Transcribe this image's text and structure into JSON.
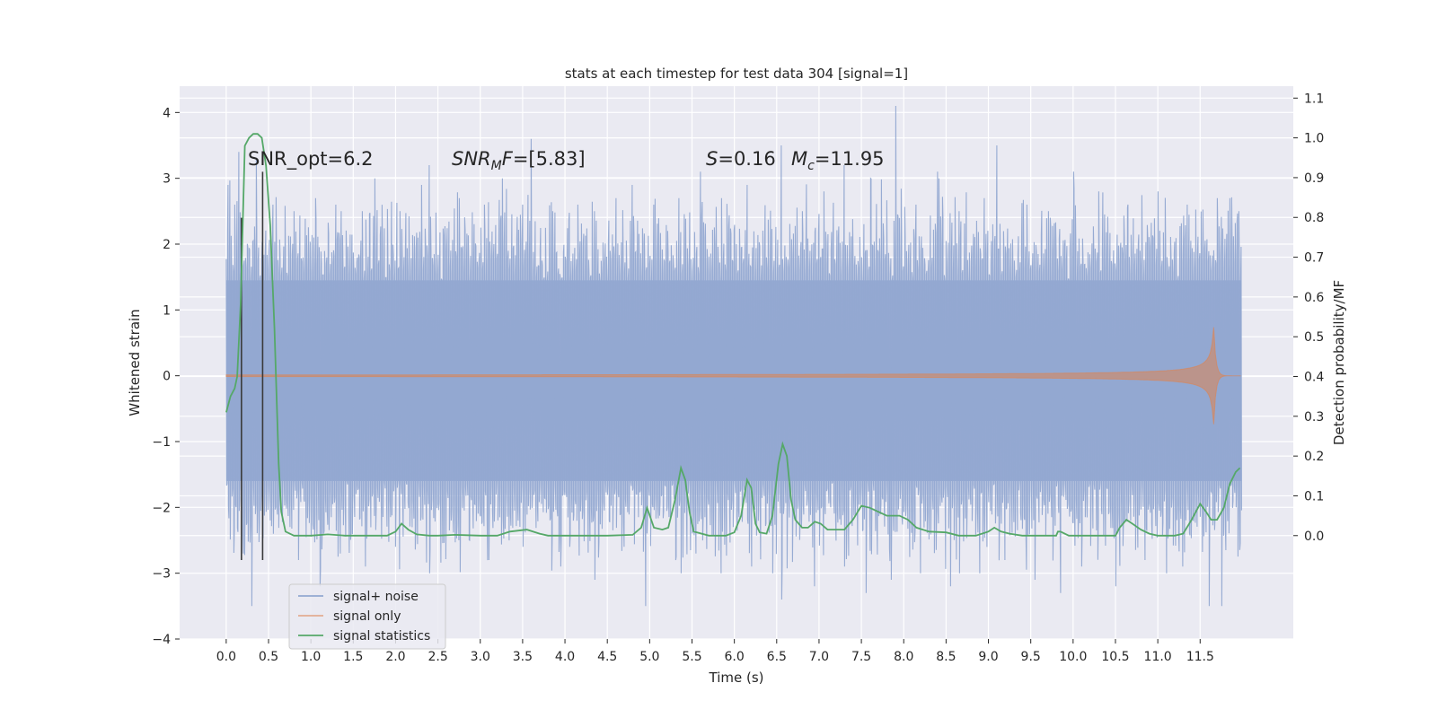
{
  "chart_data": {
    "type": "line",
    "title": "stats at each timestep for test data 304 [signal=1]",
    "xlabel": "Time (s)",
    "ylabel": "Whitened strain",
    "y2label": "Detection probability/MF",
    "xlim": [
      -0.55,
      12.6
    ],
    "ylim": [
      -4.0,
      4.4
    ],
    "y2lim": [
      -0.26,
      1.13
    ],
    "xticks": [
      "0.0",
      "0.5",
      "1.0",
      "1.5",
      "2.0",
      "2.5",
      "3.0",
      "3.5",
      "4.0",
      "4.5",
      "5.0",
      "5.5",
      "6.0",
      "6.5",
      "7.0",
      "7.5",
      "8.0",
      "8.5",
      "9.0",
      "9.5",
      "10.0",
      "10.5",
      "11.0",
      "11.5"
    ],
    "yticks": [
      "−4",
      "−3",
      "−2",
      "−1",
      "0",
      "1",
      "2",
      "3",
      "4"
    ],
    "y2ticks": [
      "0.0",
      "0.1",
      "0.2",
      "0.3",
      "0.4",
      "0.5",
      "0.6",
      "0.7",
      "0.8",
      "0.9",
      "1.0",
      "1.1"
    ],
    "grid": true,
    "legend_position": "lower-left",
    "annotations": {
      "snr_opt": "SNR_opt=6.2",
      "snr_mf_label": "SNR",
      "snr_mf_sub": "M",
      "snr_mf_rest": "F=[5.83]",
      "s_label": "S",
      "s_rest": "=0.16",
      "mc_label": "M",
      "mc_sub": "c",
      "mc_rest": "=11.95"
    },
    "series": [
      {
        "name": "signal+ noise",
        "color": "#92a8d1",
        "x_start": 0.0,
        "x_end": 11.99,
        "envelope": [
          1.45,
          -1.6
        ],
        "peaks_up": [
          [
            0.02,
            2.9
          ],
          [
            0.1,
            2.6
          ],
          [
            0.15,
            3.4
          ],
          [
            0.35,
            3.3
          ],
          [
            0.55,
            2.6
          ],
          [
            0.8,
            2.5
          ],
          [
            1.05,
            2.7
          ],
          [
            1.3,
            2.6
          ],
          [
            1.6,
            2.5
          ],
          [
            1.75,
            3.0
          ],
          [
            2.05,
            2.5
          ],
          [
            2.3,
            2.9
          ],
          [
            2.4,
            3.2
          ],
          [
            2.75,
            2.7
          ],
          [
            3.05,
            2.6
          ],
          [
            3.5,
            2.6
          ],
          [
            3.6,
            3.6
          ],
          [
            3.85,
            2.5
          ],
          [
            4.15,
            2.6
          ],
          [
            4.35,
            2.5
          ],
          [
            4.6,
            2.7
          ],
          [
            4.8,
            2.9
          ],
          [
            5.05,
            2.6
          ],
          [
            5.35,
            2.7
          ],
          [
            5.6,
            3.1
          ],
          [
            5.85,
            2.7
          ],
          [
            6.15,
            2.9
          ],
          [
            6.55,
            3.5
          ],
          [
            6.8,
            2.5
          ],
          [
            7.05,
            2.8
          ],
          [
            7.3,
            3.2
          ],
          [
            7.6,
            3.0
          ],
          [
            7.9,
            4.1
          ],
          [
            8.15,
            2.6
          ],
          [
            8.4,
            3.1
          ],
          [
            8.65,
            2.5
          ],
          [
            8.95,
            2.7
          ],
          [
            9.1,
            3.5
          ],
          [
            9.45,
            2.6
          ],
          [
            9.7,
            2.5
          ],
          [
            10.0,
            3.1
          ],
          [
            10.3,
            2.8
          ],
          [
            10.65,
            2.6
          ],
          [
            11.0,
            2.8
          ],
          [
            11.35,
            2.6
          ],
          [
            11.7,
            2.7
          ],
          [
            11.85,
            2.7
          ],
          [
            11.95,
            2.5
          ]
        ],
        "peaks_down": [
          [
            0.02,
            -2.0
          ],
          [
            0.2,
            -2.7
          ],
          [
            0.3,
            -3.5
          ],
          [
            0.55,
            -2.4
          ],
          [
            0.85,
            -2.8
          ],
          [
            1.1,
            -3.2
          ],
          [
            1.35,
            -2.7
          ],
          [
            1.65,
            -2.9
          ],
          [
            2.0,
            -2.6
          ],
          [
            2.4,
            -3.0
          ],
          [
            2.75,
            -2.5
          ],
          [
            3.1,
            -2.8
          ],
          [
            3.5,
            -2.6
          ],
          [
            3.95,
            -2.9
          ],
          [
            4.35,
            -3.1
          ],
          [
            4.7,
            -2.6
          ],
          [
            4.95,
            -3.5
          ],
          [
            5.3,
            -2.8
          ],
          [
            5.55,
            -2.7
          ],
          [
            5.85,
            -3.0
          ],
          [
            6.2,
            -2.9
          ],
          [
            6.55,
            -3.4
          ],
          [
            6.95,
            -3.2
          ],
          [
            7.3,
            -2.9
          ],
          [
            7.55,
            -3.3
          ],
          [
            7.85,
            -3.1
          ],
          [
            8.2,
            -3.0
          ],
          [
            8.55,
            -3.2
          ],
          [
            8.9,
            -3.0
          ],
          [
            9.2,
            -2.8
          ],
          [
            9.55,
            -3.1
          ],
          [
            9.85,
            -3.3
          ],
          [
            10.1,
            -2.9
          ],
          [
            10.5,
            -3.2
          ],
          [
            10.85,
            -2.8
          ],
          [
            11.1,
            -3.0
          ],
          [
            11.3,
            -2.9
          ],
          [
            11.6,
            -3.5
          ],
          [
            11.75,
            -3.5
          ],
          [
            11.95,
            -2.0
          ]
        ]
      },
      {
        "name": "signal only",
        "color": "#dd8452",
        "x_start": 0.0,
        "x_end": 11.99,
        "merger_time": 11.65,
        "peak_amplitude": 1.1
      },
      {
        "name": "signal statistics",
        "color": "#55a868",
        "axis": "right",
        "points": [
          [
            0.0,
            0.31
          ],
          [
            0.05,
            0.35
          ],
          [
            0.1,
            0.37
          ],
          [
            0.13,
            0.4
          ],
          [
            0.17,
            0.58
          ],
          [
            0.22,
            0.98
          ],
          [
            0.27,
            1.0
          ],
          [
            0.32,
            1.01
          ],
          [
            0.37,
            1.01
          ],
          [
            0.42,
            1.0
          ],
          [
            0.47,
            0.93
          ],
          [
            0.52,
            0.78
          ],
          [
            0.57,
            0.52
          ],
          [
            0.62,
            0.18
          ],
          [
            0.65,
            0.06
          ],
          [
            0.7,
            0.01
          ],
          [
            0.8,
            0.0
          ],
          [
            1.0,
            0.0
          ],
          [
            1.2,
            0.003
          ],
          [
            1.4,
            0.0
          ],
          [
            1.7,
            0.0
          ],
          [
            1.9,
            0.0
          ],
          [
            2.0,
            0.01
          ],
          [
            2.07,
            0.03
          ],
          [
            2.15,
            0.015
          ],
          [
            2.25,
            0.003
          ],
          [
            2.4,
            0.0
          ],
          [
            2.5,
            0.0
          ],
          [
            2.7,
            0.002
          ],
          [
            3.0,
            0.0
          ],
          [
            3.2,
            0.0
          ],
          [
            3.35,
            0.01
          ],
          [
            3.55,
            0.015
          ],
          [
            3.7,
            0.005
          ],
          [
            3.8,
            0.0
          ],
          [
            4.5,
            0.0
          ],
          [
            4.8,
            0.002
          ],
          [
            4.9,
            0.02
          ],
          [
            4.97,
            0.07
          ],
          [
            5.05,
            0.02
          ],
          [
            5.15,
            0.015
          ],
          [
            5.22,
            0.02
          ],
          [
            5.3,
            0.09
          ],
          [
            5.37,
            0.17
          ],
          [
            5.42,
            0.14
          ],
          [
            5.47,
            0.06
          ],
          [
            5.52,
            0.01
          ],
          [
            5.7,
            0.0
          ],
          [
            5.9,
            0.0
          ],
          [
            6.0,
            0.008
          ],
          [
            6.08,
            0.05
          ],
          [
            6.15,
            0.14
          ],
          [
            6.2,
            0.12
          ],
          [
            6.25,
            0.03
          ],
          [
            6.3,
            0.008
          ],
          [
            6.38,
            0.005
          ],
          [
            6.45,
            0.05
          ],
          [
            6.52,
            0.18
          ],
          [
            6.57,
            0.23
          ],
          [
            6.62,
            0.2
          ],
          [
            6.67,
            0.09
          ],
          [
            6.72,
            0.04
          ],
          [
            6.8,
            0.02
          ],
          [
            6.87,
            0.02
          ],
          [
            6.95,
            0.035
          ],
          [
            7.02,
            0.03
          ],
          [
            7.1,
            0.015
          ],
          [
            7.3,
            0.015
          ],
          [
            7.4,
            0.04
          ],
          [
            7.5,
            0.075
          ],
          [
            7.6,
            0.07
          ],
          [
            7.7,
            0.06
          ],
          [
            7.8,
            0.05
          ],
          [
            7.95,
            0.05
          ],
          [
            8.05,
            0.04
          ],
          [
            8.15,
            0.02
          ],
          [
            8.3,
            0.01
          ],
          [
            8.5,
            0.008
          ],
          [
            8.65,
            0.0
          ],
          [
            8.85,
            0.0
          ],
          [
            9.0,
            0.01
          ],
          [
            9.07,
            0.02
          ],
          [
            9.15,
            0.01
          ],
          [
            9.25,
            0.005
          ],
          [
            9.4,
            0.0
          ],
          [
            9.8,
            0.0
          ],
          [
            9.82,
            0.01
          ],
          [
            9.85,
            0.01
          ],
          [
            9.95,
            0.0
          ],
          [
            10.5,
            0.0
          ],
          [
            10.55,
            0.02
          ],
          [
            10.63,
            0.04
          ],
          [
            10.7,
            0.03
          ],
          [
            10.8,
            0.015
          ],
          [
            10.9,
            0.005
          ],
          [
            11.0,
            0.0
          ],
          [
            11.2,
            0.0
          ],
          [
            11.3,
            0.005
          ],
          [
            11.4,
            0.04
          ],
          [
            11.5,
            0.08
          ],
          [
            11.57,
            0.06
          ],
          [
            11.63,
            0.04
          ],
          [
            11.7,
            0.04
          ],
          [
            11.78,
            0.07
          ],
          [
            11.85,
            0.13
          ],
          [
            11.92,
            0.16
          ],
          [
            11.97,
            0.17
          ]
        ]
      }
    ],
    "vertical_markers": [
      {
        "x": 0.18,
        "y_bottom": -2.8,
        "y_top": 2.4
      },
      {
        "x": 0.43,
        "y_bottom": -2.8,
        "y_top": 3.1
      }
    ]
  }
}
